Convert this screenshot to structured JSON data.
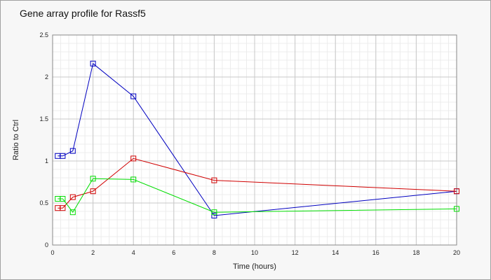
{
  "chart_data": {
    "type": "line",
    "title": "Gene array profile for Rassf5",
    "xlabel": "Time (hours)",
    "ylabel": "Ratio to Ctrl",
    "xlim": [
      0,
      20
    ],
    "ylim": [
      0,
      2.5
    ],
    "xticks": [
      0,
      2,
      4,
      6,
      8,
      10,
      12,
      14,
      16,
      18,
      20
    ],
    "xtick_labels": [
      "0",
      "2",
      "4",
      "6",
      "8",
      "10",
      "12",
      "14",
      "16",
      "18",
      "20"
    ],
    "yticks": [
      0,
      0.5,
      1,
      1.5,
      2,
      2.5
    ],
    "ytick_labels": [
      "0",
      "0.5",
      "1",
      "1.5",
      "2",
      "2.5"
    ],
    "grid": true,
    "marker": "square",
    "series": [
      {
        "color": "#0000c0",
        "x": [
          0.25,
          0.5,
          1,
          2,
          4,
          8,
          20
        ],
        "y": [
          1.06,
          1.06,
          1.12,
          2.16,
          1.77,
          0.35,
          0.64
        ]
      },
      {
        "color": "#d00000",
        "x": [
          0.25,
          0.5,
          1,
          2,
          4,
          8,
          20
        ],
        "y": [
          0.44,
          0.44,
          0.57,
          0.64,
          1.03,
          0.77,
          0.64
        ]
      },
      {
        "color": "#00dd00",
        "x": [
          0.25,
          0.5,
          1,
          2,
          4,
          8,
          20
        ],
        "y": [
          0.55,
          0.55,
          0.39,
          0.79,
          0.78,
          0.39,
          0.43
        ]
      }
    ]
  }
}
